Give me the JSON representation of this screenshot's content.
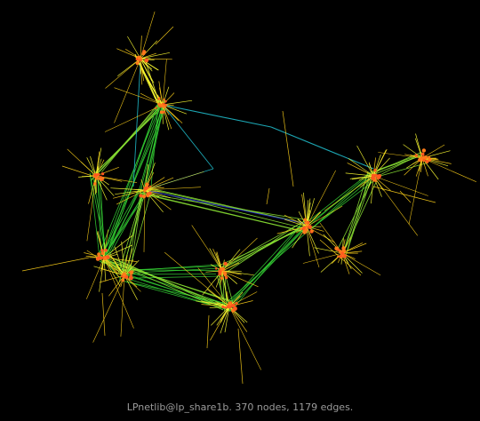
{
  "caption": "LPnetlib@lp_share1b. 370 nodes, 1179 edges.",
  "graph": {
    "nodes_count": 370,
    "edges_count": 1179,
    "background_color": "#000000",
    "edge_colors": [
      "#ffff33",
      "#ffd11a",
      "#88e033",
      "#33cc33",
      "#1fb8c7",
      "#2222cc"
    ],
    "node_color": "#ff5a1f",
    "hub_color": "#ff7a1a"
  }
}
